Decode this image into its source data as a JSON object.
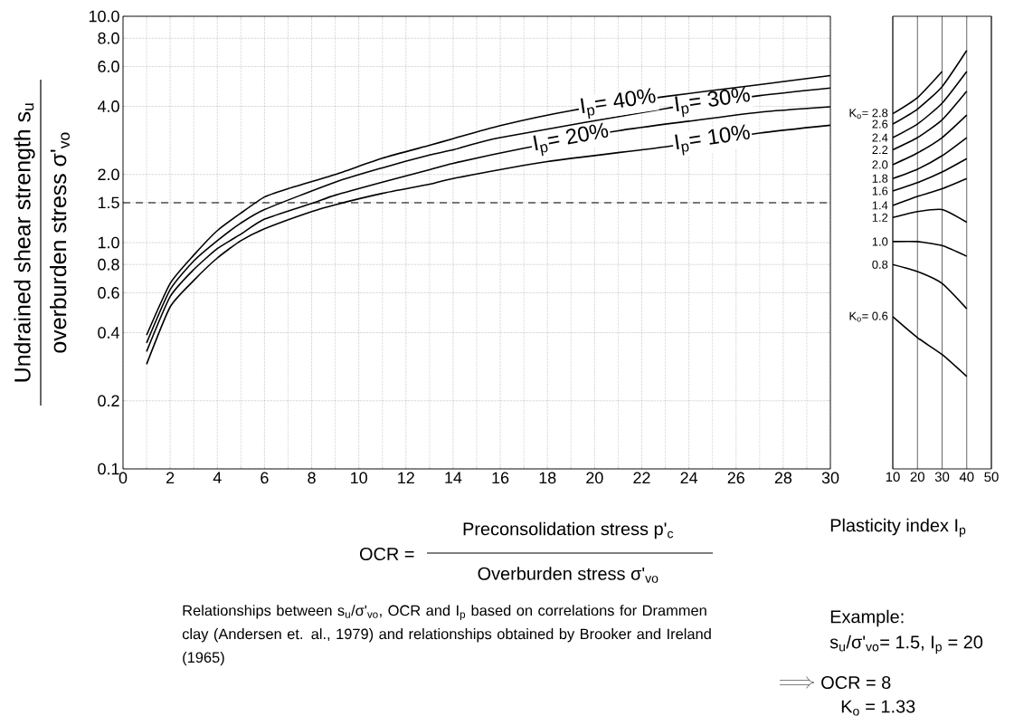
{
  "chart_data": [
    {
      "type": "line",
      "xlabel": "OCR =",
      "ylabel": "Undrained shear strength s$_{u}$",
      "annotations": [
        "overburden stress σ'$_{vo}$",
        "Preconsolidation stress p'$_{c}$",
        "Overburden stress σ'$_{vo}$",
        "Relationships between s$_{u}$/σ'$_{vo}$, OCR and I$_{p}$ based on correlations for Drammen clay (Andersen et. al., 1979) and relationships obtained by Brooker and Ireland (1965)"
      ],
      "xlim": [
        0,
        30
      ],
      "xticks": [
        0,
        2,
        4,
        6,
        8,
        10,
        12,
        14,
        16,
        18,
        20,
        22,
        24,
        26,
        28,
        30
      ],
      "ylim": [
        0.1,
        10
      ],
      "yticks": [
        0.1,
        0.2,
        0.4,
        0.6,
        0.8,
        {
          "value": 1,
          "label": "1.0"
        },
        1.5,
        {
          "value": 2,
          "label": "2.0"
        },
        {
          "value": 4,
          "label": "4.0"
        },
        {
          "value": 6,
          "label": "6.0"
        },
        {
          "value": 8,
          "label": "8.0"
        },
        {
          "value": 10,
          "label": "10.0"
        }
      ],
      "log": "y",
      "grid": true,
      "ref_lines": [
        {
          "axis": "y",
          "value": 1.5,
          "line_style": "dashed"
        }
      ],
      "series": [
        {
          "name": "I$_{p}$= 10%",
          "color": "#000000",
          "x": [
            1,
            2,
            3,
            4,
            5,
            6,
            8,
            9,
            11,
            13,
            14,
            18,
            23,
            27,
            30
          ],
          "values": [
            0.29,
            0.52,
            0.68,
            0.855,
            1.02,
            1.15,
            1.37,
            1.47,
            1.65,
            1.81,
            1.92,
            2.28,
            2.65,
            3.05,
            3.3
          ]
        },
        {
          "name": "I$_{p}$= 20%",
          "color": "#000000",
          "x": [
            1,
            2,
            3,
            4,
            5,
            6,
            8,
            9,
            11,
            13,
            14,
            17,
            21,
            24,
            27,
            30
          ],
          "values": [
            0.33,
            0.577,
            0.76,
            0.94,
            1.09,
            1.27,
            1.49,
            1.62,
            1.85,
            2.1,
            2.24,
            2.61,
            3.12,
            3.44,
            3.77,
            3.98
          ]
        },
        {
          "name": "I$_{p}$= 30%",
          "color": "#000000",
          "x": [
            1,
            2,
            3,
            4,
            5,
            6,
            9,
            11,
            13,
            14,
            16,
            23,
            27,
            30
          ],
          "values": [
            0.36,
            0.62,
            0.83,
            1.02,
            1.22,
            1.4,
            1.85,
            2.14,
            2.44,
            2.57,
            2.91,
            3.91,
            4.46,
            4.82
          ]
        },
        {
          "name": "I$_{p}$= 40%",
          "color": "#000000",
          "x": [
            1,
            2,
            3,
            4,
            5,
            6,
            7,
            9,
            11,
            13,
            14,
            16,
            19,
            23,
            27,
            30
          ],
          "values": [
            0.39,
            0.66,
            0.88,
            1.13,
            1.35,
            1.59,
            1.73,
            2.0,
            2.36,
            2.69,
            2.88,
            3.29,
            3.83,
            4.42,
            4.99,
            5.47
          ]
        }
      ]
    },
    {
      "type": "line",
      "xlabel": "Plasticity index I$_{p}$",
      "annotations": [
        "Example:",
        "s$_{u}$/σ'$_{vo}$= 1.5, I$_{p}$ = 20",
        "OCR = 8",
        "K$_{o}$  = 1.33"
      ],
      "xlim": [
        10,
        50
      ],
      "xticks": [
        10,
        20,
        30,
        40,
        50
      ],
      "ylim": [
        0.1,
        10
      ],
      "log": "y",
      "grid": "x",
      "tick_labels": "x",
      "x": [
        10,
        20,
        30,
        40
      ],
      "series": [
        {
          "name": "K$_{o}$= 2.8",
          "color": "#000000",
          "x": [
            10,
            20,
            30
          ],
          "values": [
            3.71,
            4.37,
            5.7
          ]
        },
        {
          "name": "2.6",
          "color": "#000000",
          "values": [
            3.34,
            3.89,
            4.89,
            7.06
          ]
        },
        {
          "name": "2.4",
          "color": "#000000",
          "values": [
            2.91,
            3.34,
            4.13,
            5.7
          ]
        },
        {
          "name": "2.2",
          "color": "#000000",
          "values": [
            2.57,
            2.91,
            3.49,
            4.67
          ]
        },
        {
          "name": "2.0",
          "color": "#000000",
          "values": [
            2.21,
            2.49,
            2.91,
            3.66
          ]
        },
        {
          "name": "1.8",
          "color": "#000000",
          "values": [
            1.92,
            2.11,
            2.42,
            2.91
          ]
        },
        {
          "name": "1.6",
          "color": "#000000",
          "values": [
            1.69,
            1.84,
            2.05,
            2.35
          ]
        },
        {
          "name": "1.4",
          "color": "#000000",
          "values": [
            1.46,
            1.6,
            1.73,
            1.92
          ]
        },
        {
          "name": "1.2",
          "color": "#000000",
          "values": [
            1.29,
            1.37,
            1.4,
            1.23
          ]
        },
        {
          "name": "1.0",
          "color": "#000000",
          "values": [
            1.01,
            1.01,
            0.97,
            0.87
          ]
        },
        {
          "name": "0.8",
          "color": "#000000",
          "values": [
            0.8,
            0.745,
            0.66,
            0.51
          ]
        },
        {
          "name": "K$_{o}$= 0.6",
          "color": "#000000",
          "values": [
            0.47,
            0.38,
            0.32,
            0.256
          ]
        }
      ]
    }
  ]
}
